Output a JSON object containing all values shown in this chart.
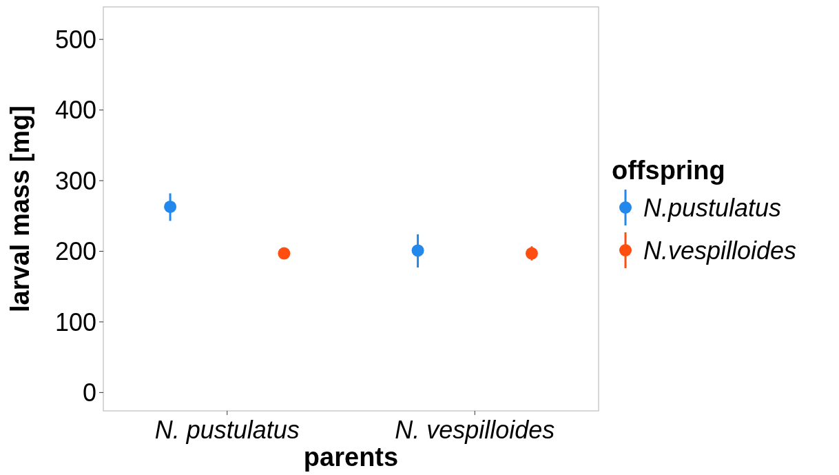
{
  "chart_data": {
    "type": "scatter",
    "xlabel": "parents",
    "ylabel": "larval mass [mg]",
    "legend_title": "offspring",
    "categories": [
      "N. pustulatus",
      "N. vespilloides"
    ],
    "series": [
      {
        "name": "N.pustulatus",
        "color": "#2388ec",
        "values": [
          263,
          201
        ],
        "errors": [
          [
            243,
            282
          ],
          [
            177,
            224
          ]
        ]
      },
      {
        "name": "N.vespilloides",
        "color": "#ff4e10",
        "values": [
          197,
          197
        ],
        "errors": [
          [
            190,
            204
          ],
          [
            187,
            207
          ]
        ]
      }
    ],
    "ylim": [
      -26,
      546
    ],
    "yticks": [
      0,
      100,
      200,
      300,
      400,
      500
    ],
    "grid": false,
    "legend": "right",
    "marker": "circle"
  }
}
